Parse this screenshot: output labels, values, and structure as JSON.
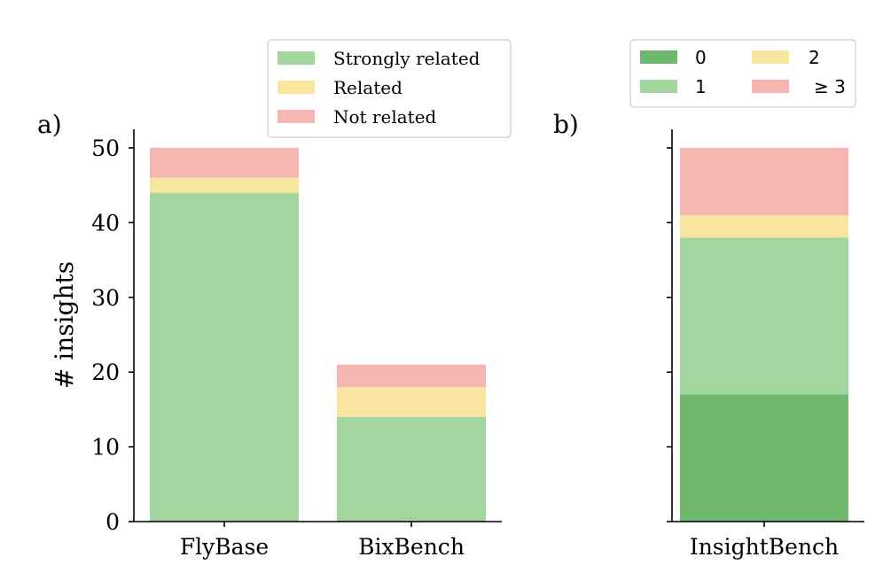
{
  "chart_data": [
    {
      "panel": "a)",
      "type": "bar",
      "stacked": true,
      "ylabel": "# insights",
      "xlabel": "",
      "ylim": [
        0,
        52.5
      ],
      "yticks": [
        0,
        10,
        20,
        30,
        40,
        50
      ],
      "yticklabels": [
        "0",
        "10",
        "20",
        "30",
        "40",
        "50"
      ],
      "categories": [
        "FlyBase",
        "BixBench"
      ],
      "series": [
        {
          "name": "Strongly related",
          "color": "#a2d69e",
          "values": [
            44,
            14
          ]
        },
        {
          "name": "Related",
          "color": "#f8e59f",
          "values": [
            2,
            4
          ]
        },
        {
          "name": "Not related",
          "color": "#f5b6b1",
          "values": [
            4,
            3
          ]
        }
      ],
      "legend": {
        "placement": "top-right",
        "entries": [
          "Strongly related",
          "Related",
          "Not related"
        ]
      }
    },
    {
      "panel": "b)",
      "type": "bar",
      "stacked": true,
      "ylim": [
        0,
        52.5
      ],
      "yticks": [
        0,
        10,
        20,
        30,
        40,
        50
      ],
      "categories": [
        "InsightBench"
      ],
      "series": [
        {
          "name": "0",
          "color": "#6fb86d",
          "values": [
            17
          ]
        },
        {
          "name": "1",
          "color": "#a2d69e",
          "values": [
            21
          ]
        },
        {
          "name": "2",
          "color": "#f8e59f",
          "values": [
            3
          ]
        },
        {
          "name": "≥ 3",
          "color": "#f5b6b1",
          "values": [
            9
          ]
        }
      ],
      "legend": {
        "placement": "top",
        "columns": 2,
        "entries": [
          "0",
          "1",
          "2",
          "≥ 3"
        ]
      }
    }
  ]
}
